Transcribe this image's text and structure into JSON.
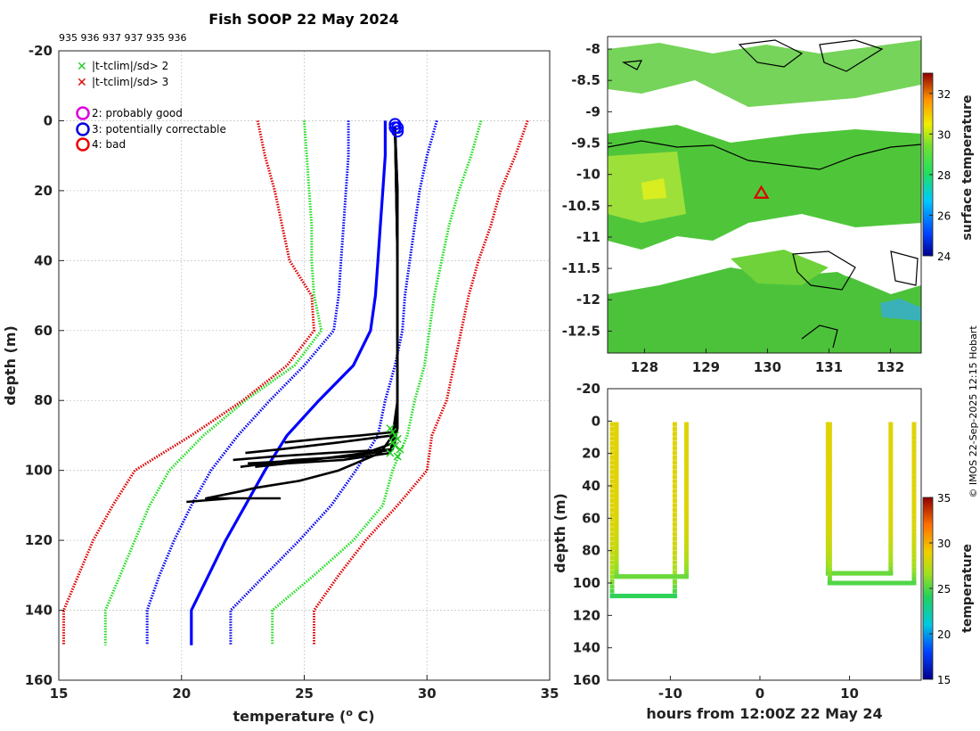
{
  "chart_data": [
    {
      "id": "profile",
      "type": "line",
      "title": "Fish SOOP 22 May 2024",
      "subtitle": "935 936 937 937 935 936",
      "xlabel": "temperature (",
      "xlabel_sup": "o",
      "xlabel_end": " C)",
      "ylabel": "depth (m)",
      "xlim": [
        15,
        35
      ],
      "ylim": [
        -20,
        160
      ],
      "y_reversed": true,
      "grid": true,
      "xticks": [
        15,
        20,
        25,
        30,
        35
      ],
      "yticks": [
        -20,
        0,
        20,
        40,
        60,
        80,
        100,
        120,
        140,
        160
      ],
      "legend": [
        {
          "marker": "x",
          "color": "#22cc22",
          "label": "|t-tclim|/sd> 2"
        },
        {
          "marker": "x",
          "color": "#dd0000",
          "label": "|t-tclim|/sd> 3"
        },
        {
          "marker": "o",
          "color": "#dd00dd",
          "label": "2: probably good"
        },
        {
          "marker": "o",
          "color": "#0000dd",
          "label": "3: potentially correctable"
        },
        {
          "marker": "o",
          "color": "#ee0000",
          "label": "4: bad"
        }
      ],
      "climatology": {
        "depths": [
          0,
          10,
          20,
          30,
          40,
          50,
          60,
          70,
          80,
          90,
          100,
          110,
          120,
          130,
          140,
          150
        ],
        "series": [
          {
            "name": "mean",
            "color": "#0000ff",
            "style": "solid",
            "values": [
              28.3,
              28.3,
              28.2,
              28.1,
              28.0,
              27.9,
              27.7,
              27.0,
              25.6,
              24.3,
              23.4,
              22.6,
              21.8,
              21.1,
              20.4,
              20.4
            ]
          },
          {
            "name": "-1sd",
            "color": "#0000ee",
            "style": "dotted",
            "values": [
              26.8,
              26.8,
              26.7,
              26.6,
              26.5,
              26.4,
              26.2,
              25.0,
              23.6,
              22.3,
              21.2,
              20.4,
              19.7,
              19.1,
              18.6,
              18.6
            ]
          },
          {
            "name": "+1sd",
            "color": "#0000ee",
            "style": "dotted",
            "values": [
              30.4,
              30.0,
              29.7,
              29.5,
              29.3,
              29.1,
              29.0,
              28.7,
              28.3,
              28.0,
              27.1,
              26.1,
              24.8,
              23.4,
              22.0,
              22.0
            ]
          },
          {
            "name": "-2sd",
            "color": "#22dd22",
            "style": "dotted",
            "values": [
              25.0,
              25.1,
              25.2,
              25.3,
              25.3,
              25.4,
              25.7,
              24.6,
              22.6,
              20.9,
              19.5,
              18.7,
              18.1,
              17.5,
              16.9,
              16.9
            ]
          },
          {
            "name": "+2sd",
            "color": "#22dd22",
            "style": "dotted",
            "values": [
              32.2,
              31.8,
              31.3,
              30.9,
              30.6,
              30.3,
              30.1,
              29.9,
              29.5,
              29.2,
              28.6,
              28.2,
              27.0,
              25.4,
              23.7,
              23.7
            ]
          },
          {
            "name": "-3sd",
            "color": "#dd0000",
            "style": "dotted",
            "values": [
              23.1,
              23.4,
              23.8,
              24.1,
              24.4,
              25.3,
              25.4,
              24.3,
              22.5,
              20.4,
              18.1,
              17.2,
              16.4,
              15.8,
              15.2,
              15.2
            ]
          },
          {
            "name": "+3sd",
            "color": "#dd0000",
            "style": "dotted",
            "values": [
              34.1,
              33.6,
              33.0,
              32.6,
              32.1,
              31.7,
              31.4,
              31.1,
              30.8,
              30.2,
              30.0,
              28.8,
              27.5,
              26.4,
              25.4,
              25.4
            ]
          }
        ]
      },
      "profiles": [
        {
          "temps": [
            28.7,
            28.8,
            28.8,
            28.8,
            28.8,
            28.7,
            27.3,
            25.6,
            24.2
          ],
          "depths": [
            2,
            20,
            50,
            80,
            86,
            89,
            90,
            91,
            92
          ]
        },
        {
          "temps": [
            28.7,
            28.8,
            28.8,
            28.8,
            28.6,
            26.4,
            24.0,
            22.6
          ],
          "depths": [
            2,
            20,
            60,
            85,
            90,
            92,
            94,
            95
          ]
        },
        {
          "temps": [
            28.7,
            28.8,
            28.8,
            28.8,
            28.6,
            26.0,
            23.8,
            22.1
          ],
          "depths": [
            2,
            30,
            70,
            88,
            94,
            95,
            96,
            97
          ]
        },
        {
          "temps": [
            28.7,
            28.8,
            28.8,
            28.7,
            27.5,
            25.3,
            22.7
          ],
          "depths": [
            2,
            40,
            80,
            92,
            95,
            97,
            98
          ]
        },
        {
          "temps": [
            28.7,
            28.8,
            28.8,
            28.6,
            27.0,
            24.6,
            22.4
          ],
          "depths": [
            2,
            40,
            85,
            94,
            96,
            97,
            99
          ]
        },
        {
          "temps": [
            28.7,
            28.8,
            28.8,
            28.5,
            26.6,
            24.3,
            23.0
          ],
          "depths": [
            2,
            40,
            85,
            95,
            97,
            98,
            99
          ]
        },
        {
          "temps": [
            28.7,
            28.8,
            28.8,
            28.6,
            28.1,
            26.4,
            24.8,
            23.0,
            22.4,
            21.0,
            24.0,
            22.0,
            20.2
          ],
          "depths": [
            2,
            30,
            80,
            90,
            95,
            100,
            103,
            105,
            106,
            108,
            108,
            108,
            109
          ]
        }
      ],
      "flagged_points": {
        "color": "#22cc22",
        "temps": [
          28.5,
          28.6,
          28.7,
          28.8,
          28.6,
          28.7,
          28.9,
          28.5,
          28.8
        ],
        "depths": [
          88,
          89,
          90,
          91,
          92,
          93,
          94,
          95,
          96
        ]
      },
      "surface_markers": {
        "color": "#0000ff",
        "temps": [
          28.7,
          28.7,
          28.8,
          28.8
        ],
        "depths": [
          1,
          2,
          2,
          3
        ]
      }
    },
    {
      "id": "map",
      "type": "heatmap",
      "xlim": [
        127.4,
        132.5
      ],
      "ylim": [
        -12.85,
        -7.8
      ],
      "xticks": [
        128,
        129,
        130,
        131,
        132
      ],
      "yticks": [
        -8,
        -8.5,
        -9,
        -9.5,
        -10,
        -10.5,
        -11,
        -11.5,
        -12,
        -12.5
      ],
      "colorbar": {
        "label": "surface temperature",
        "min": 24,
        "max": 33,
        "ticks": [
          24,
          26,
          28,
          30,
          32
        ]
      },
      "dominant_value": 27.5,
      "location_marker": {
        "lon": 129.9,
        "lat": -10.3,
        "color": "#dd0000",
        "marker": "triangle"
      }
    },
    {
      "id": "timeseries",
      "type": "scatter",
      "xlabel": "hours from 12:00Z 22 May 24",
      "ylabel": "depth (m)",
      "xlim": [
        -17,
        18
      ],
      "ylim": [
        -20,
        160
      ],
      "y_reversed": true,
      "xticks": [
        -10,
        0,
        10
      ],
      "yticks": [
        -20,
        0,
        20,
        40,
        60,
        80,
        100,
        120,
        140,
        160
      ],
      "colorbar": {
        "label": "temperature",
        "min": 15,
        "max": 35,
        "ticks": [
          15,
          20,
          25,
          30,
          35
        ]
      },
      "casts": [
        {
          "t_down": -16.5,
          "t_up": -9.5,
          "bottom": 108,
          "surface_temp": 28.5,
          "bottom_temp": 24.3
        },
        {
          "t_down": -16.0,
          "t_up": -8.2,
          "bottom": 96,
          "surface_temp": 28.5,
          "bottom_temp": 25.5
        },
        {
          "t_down": 7.6,
          "t_up": 14.6,
          "bottom": 94,
          "surface_temp": 28.5,
          "bottom_temp": 25.5
        },
        {
          "t_down": 7.8,
          "t_up": 17.2,
          "bottom": 100,
          "surface_temp": 28.5,
          "bottom_temp": 25.0
        }
      ]
    }
  ],
  "copyright": "© IMOS 22-Sep-2025 12:15 Hobart"
}
